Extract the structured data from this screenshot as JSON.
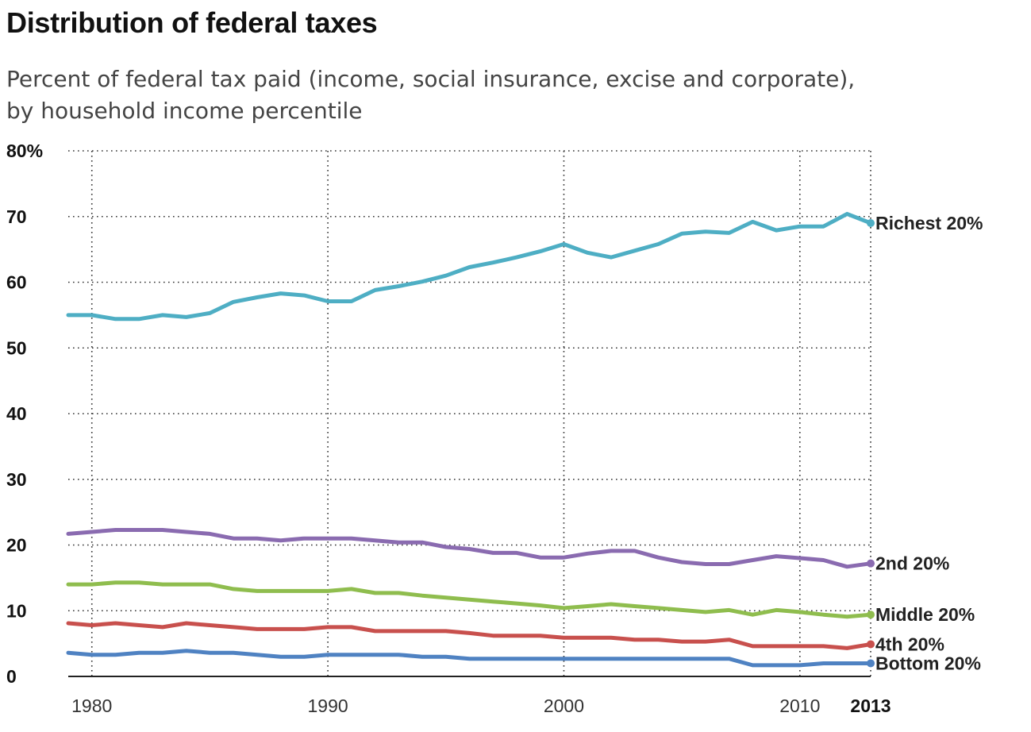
{
  "chart_data": {
    "type": "line",
    "title": "Distribution of federal taxes",
    "subtitle": [
      "Percent of federal tax paid (income, social insurance, excise and corporate),",
      "by household income percentile"
    ],
    "xlabel": "",
    "ylabel": "",
    "xlim": [
      1979,
      2013
    ],
    "ylim": [
      0,
      80
    ],
    "grid": true,
    "y_ticks": [
      {
        "value": 80,
        "label": "80%"
      },
      {
        "value": 70,
        "label": "70"
      },
      {
        "value": 60,
        "label": "60"
      },
      {
        "value": 50,
        "label": "50"
      },
      {
        "value": 40,
        "label": "40"
      },
      {
        "value": 30,
        "label": "30"
      },
      {
        "value": 20,
        "label": "20"
      },
      {
        "value": 10,
        "label": "10"
      },
      {
        "value": 0,
        "label": "0"
      }
    ],
    "x_ticks": [
      {
        "value": 1980,
        "label": "1980",
        "bold": false
      },
      {
        "value": 1990,
        "label": "1990",
        "bold": false
      },
      {
        "value": 2000,
        "label": "2000",
        "bold": false
      },
      {
        "value": 2010,
        "label": "2010",
        "bold": false
      },
      {
        "value": 2013,
        "label": "2013",
        "bold": true
      }
    ],
    "x": [
      1979,
      1980,
      1981,
      1982,
      1983,
      1984,
      1985,
      1986,
      1987,
      1988,
      1989,
      1990,
      1991,
      1992,
      1993,
      1994,
      1995,
      1996,
      1997,
      1998,
      1999,
      2000,
      2001,
      2002,
      2003,
      2004,
      2005,
      2006,
      2007,
      2008,
      2009,
      2010,
      2011,
      2012,
      2013
    ],
    "series": [
      {
        "name": "Richest 20%",
        "color": "#4eaec4",
        "values": [
          55.0,
          55.0,
          54.4,
          54.4,
          55.0,
          54.7,
          55.3,
          57.0,
          57.7,
          58.3,
          58.0,
          57.1,
          57.1,
          58.8,
          59.4,
          60.1,
          61.0,
          62.3,
          63.0,
          63.8,
          64.7,
          65.8,
          64.5,
          63.8,
          64.8,
          65.8,
          67.4,
          67.7,
          67.5,
          69.2,
          67.9,
          68.5,
          68.5,
          70.4,
          69.0
        ]
      },
      {
        "name": "2nd 20%",
        "color": "#8a6bb0",
        "values": [
          21.7,
          22.0,
          22.3,
          22.3,
          22.3,
          22.0,
          21.7,
          21.0,
          21.0,
          20.7,
          21.0,
          21.0,
          21.0,
          20.7,
          20.4,
          20.4,
          19.7,
          19.4,
          18.8,
          18.8,
          18.1,
          18.1,
          18.7,
          19.1,
          19.1,
          18.1,
          17.4,
          17.1,
          17.1,
          17.7,
          18.3,
          18.0,
          17.7,
          16.7,
          17.2
        ]
      },
      {
        "name": "Middle 20%",
        "color": "#8fbd4e",
        "values": [
          14.0,
          14.0,
          14.3,
          14.3,
          14.0,
          14.0,
          14.0,
          13.3,
          13.0,
          13.0,
          13.0,
          13.0,
          13.3,
          12.7,
          12.7,
          12.3,
          12.0,
          11.7,
          11.4,
          11.1,
          10.8,
          10.4,
          10.7,
          11.0,
          10.7,
          10.4,
          10.1,
          9.8,
          10.1,
          9.4,
          10.1,
          9.8,
          9.4,
          9.1,
          9.4
        ]
      },
      {
        "name": "4th 20%",
        "color": "#c8504d",
        "values": [
          8.1,
          7.8,
          8.1,
          7.8,
          7.5,
          8.1,
          7.8,
          7.5,
          7.2,
          7.2,
          7.2,
          7.5,
          7.5,
          6.9,
          6.9,
          6.9,
          6.9,
          6.6,
          6.2,
          6.2,
          6.2,
          5.9,
          5.9,
          5.9,
          5.6,
          5.6,
          5.3,
          5.3,
          5.6,
          4.6,
          4.6,
          4.6,
          4.6,
          4.3,
          4.9
        ]
      },
      {
        "name": "Bottom 20%",
        "color": "#4f82c2",
        "values": [
          3.6,
          3.3,
          3.3,
          3.6,
          3.6,
          3.9,
          3.6,
          3.6,
          3.3,
          3.0,
          3.0,
          3.3,
          3.3,
          3.3,
          3.3,
          3.0,
          3.0,
          2.7,
          2.7,
          2.7,
          2.7,
          2.7,
          2.7,
          2.7,
          2.7,
          2.7,
          2.7,
          2.7,
          2.7,
          1.7,
          1.7,
          1.7,
          2.0,
          2.0,
          2.0
        ]
      }
    ]
  }
}
